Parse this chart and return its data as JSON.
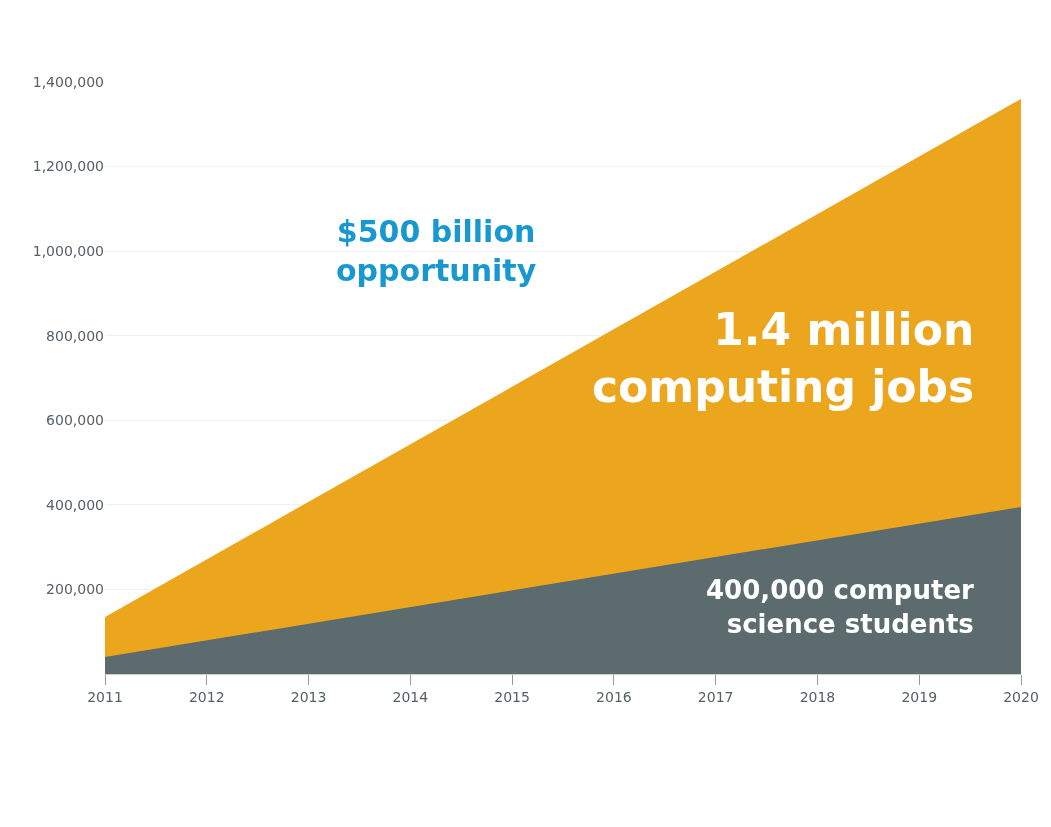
{
  "chart_data": {
    "type": "area",
    "x": [
      2011,
      2020
    ],
    "series": [
      {
        "name": "1.4 million\ncomputing jobs",
        "color": "#eca61d",
        "values": [
          135000,
          1360000
        ]
      },
      {
        "name": "400,000 computer\nscience students",
        "color": "#5b6b6e",
        "values": [
          40000,
          395000
        ]
      }
    ],
    "xlim": [
      2011,
      2020
    ],
    "xticks": [
      2011,
      2012,
      2013,
      2014,
      2015,
      2016,
      2017,
      2018,
      2019,
      2020
    ],
    "ylim": [
      0,
      1400000
    ],
    "yticks": [
      {
        "value": 200000,
        "label": "200,000"
      },
      {
        "value": 400000,
        "label": "400,000"
      },
      {
        "value": 600000,
        "label": "600,000"
      },
      {
        "value": 800000,
        "label": "800,000"
      },
      {
        "value": 1000000,
        "label": "1,000,000"
      },
      {
        "value": 1200000,
        "label": "1,200,000"
      },
      {
        "value": 1400000,
        "label": "1,400,000"
      }
    ],
    "grid": "y",
    "annotations": [
      "$500 billion\nopportunity"
    ]
  }
}
